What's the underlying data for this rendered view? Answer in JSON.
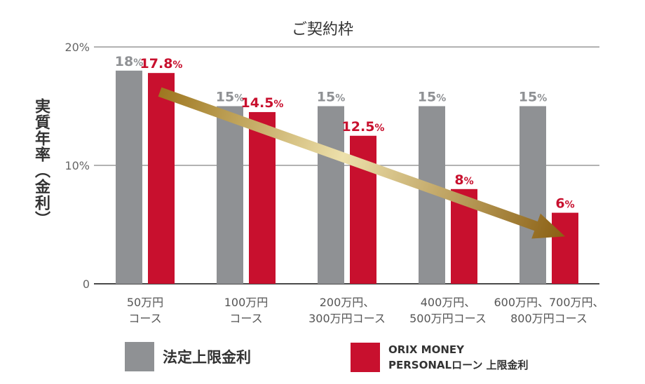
{
  "chart_data": {
    "type": "bar",
    "title": "ご契約枠",
    "ylabel": "実質年率（金利）",
    "ylim": [
      0,
      20
    ],
    "yticks": [
      {
        "value": 0,
        "label": "0"
      },
      {
        "value": 10,
        "label": "10%"
      },
      {
        "value": 20,
        "label": "20%"
      }
    ],
    "grid": true,
    "legend_position": "bottom",
    "categories": [
      [
        "50万円",
        "コース"
      ],
      [
        "100万円",
        "コース"
      ],
      [
        "200万円、",
        "300万円コース"
      ],
      [
        "400万円、",
        "500万円コース"
      ],
      [
        "600万円、700万円、",
        "800万円コース"
      ]
    ],
    "series": [
      {
        "name": "法定上限金利",
        "color": "#8f9194",
        "values": [
          18,
          15,
          15,
          15,
          15
        ],
        "labels": [
          {
            "num": "18",
            "unit": "%"
          },
          {
            "num": "15",
            "unit": "%"
          },
          {
            "num": "15",
            "unit": "%"
          },
          {
            "num": "15",
            "unit": "%"
          },
          {
            "num": "15",
            "unit": "%"
          }
        ]
      },
      {
        "name": "ORIX MONEY PERSONALローン 上限金利",
        "color": "#c8102e",
        "values": [
          17.8,
          14.5,
          12.5,
          8,
          6
        ],
        "labels": [
          {
            "num": "17.8",
            "unit": "%"
          },
          {
            "num": "14.5",
            "unit": "%"
          },
          {
            "num": "12.5",
            "unit": "%"
          },
          {
            "num": "8",
            "unit": "%"
          },
          {
            "num": "6",
            "unit": "%"
          }
        ]
      }
    ],
    "annotations": [
      {
        "type": "arrow",
        "from": [
          0,
          16.2
        ],
        "to": [
          4,
          4
        ],
        "color": "#b8963a"
      }
    ]
  },
  "legend": {
    "legal_label": "法定上限金利",
    "orix_line1": "ORIX MONEY",
    "orix_line2": "PERSONALローン 上限金利"
  },
  "colors": {
    "gray": "#8f9194",
    "red": "#c8102e",
    "axis": "#4a4a4a",
    "grid": "#999999",
    "text": "#333333"
  }
}
